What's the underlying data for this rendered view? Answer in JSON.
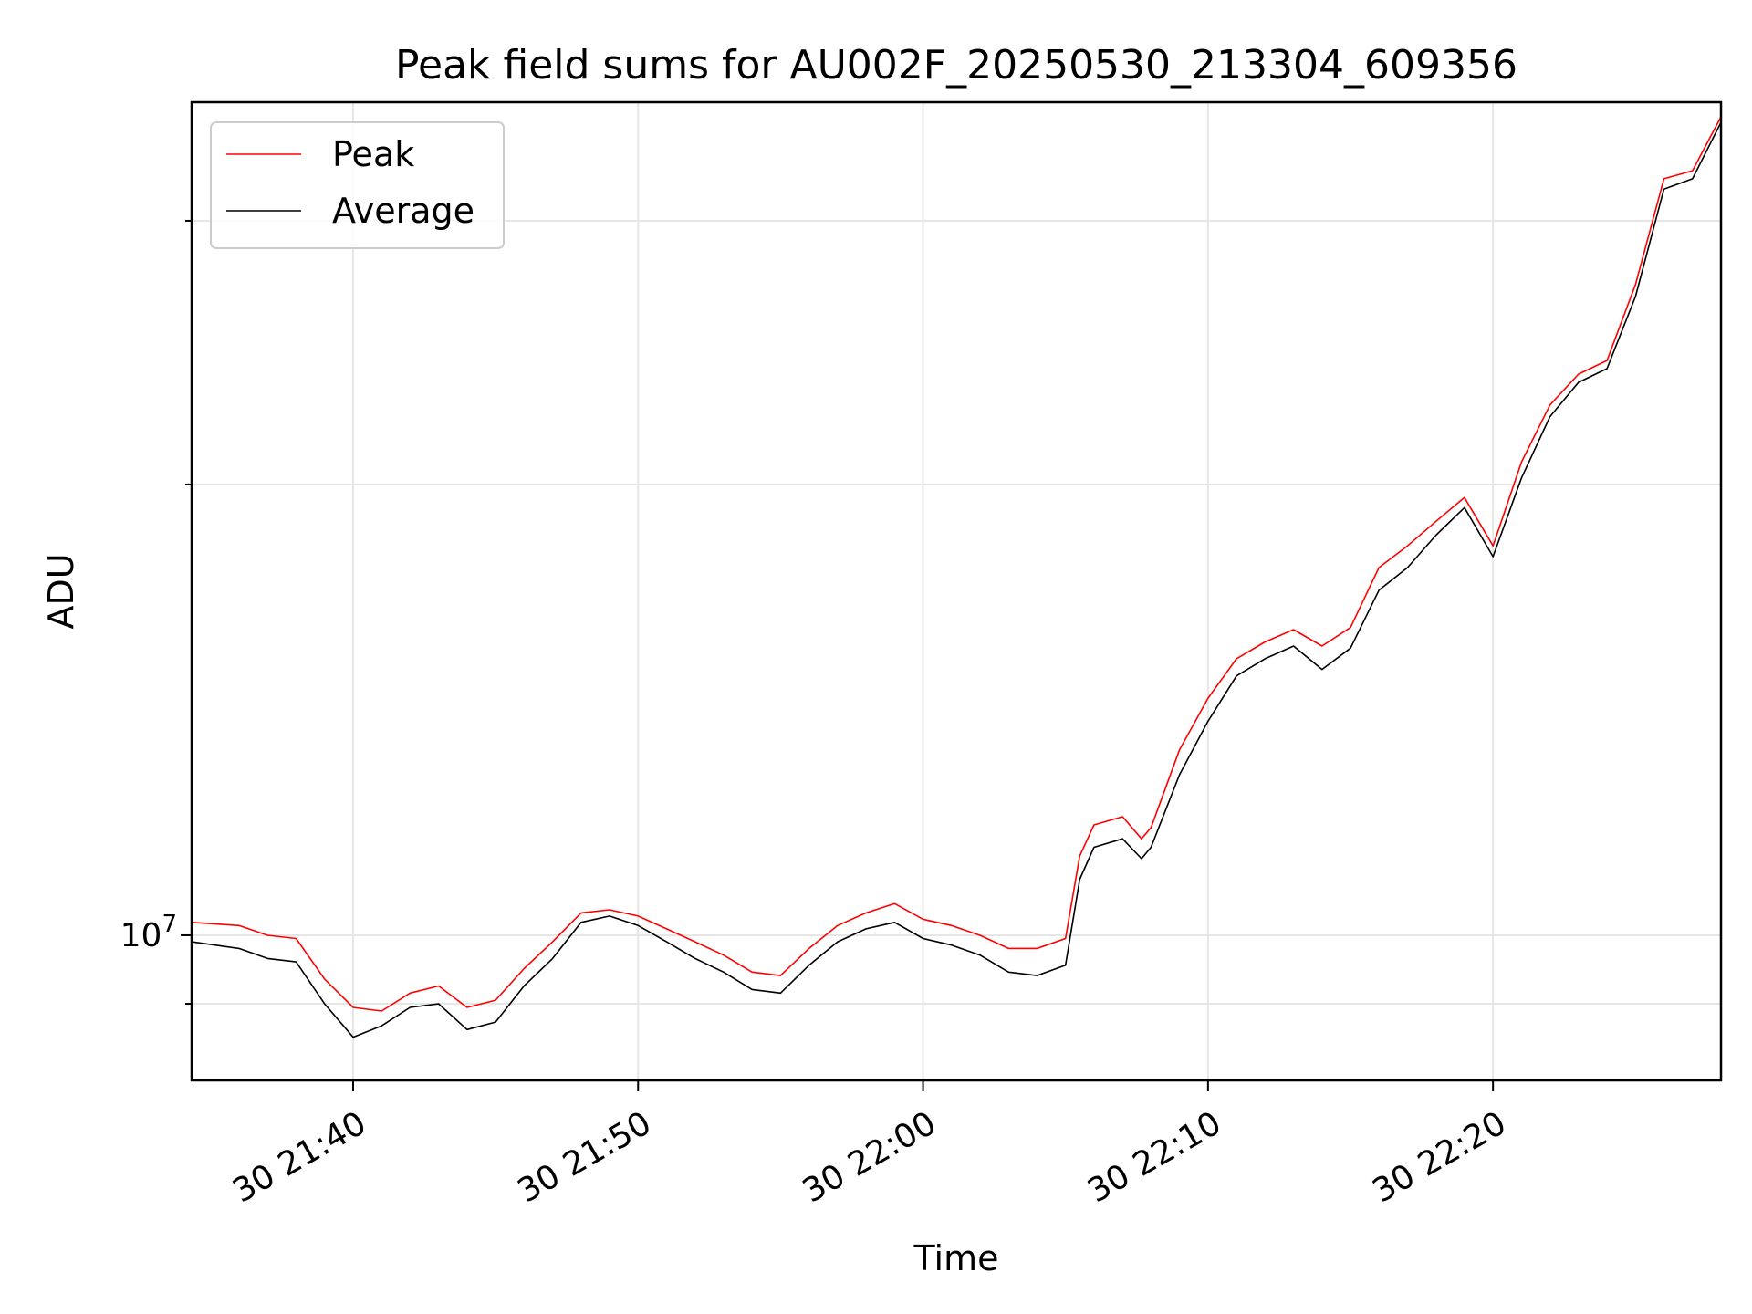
{
  "chart_data": {
    "type": "line",
    "title": "Peak field sums for AU002F_20250530_213304_609356",
    "xlabel": "Time",
    "ylabel": "ADU",
    "y_scale": "log",
    "grid": true,
    "legend_position": "top-left",
    "xlim": [
      "2025-05-30 21:34:20",
      "2025-05-30 22:28:00"
    ],
    "ylim": [
      8000000,
      36000000
    ],
    "x_ticks": [
      {
        "label": "30 21:40",
        "time": "21:40"
      },
      {
        "label": "30 21:50",
        "time": "21:50"
      },
      {
        "label": "30 22:00",
        "time": "22:00"
      },
      {
        "label": "30 22:10",
        "time": "22:10"
      },
      {
        "label": "30 22:20",
        "time": "22:20"
      }
    ],
    "y_ticks": [
      {
        "label": "10",
        "exponent": "7",
        "value": 10000000
      }
    ],
    "x": [
      "21:34:20",
      "21:36:00",
      "21:37:00",
      "21:38:00",
      "21:39:00",
      "21:40:00",
      "21:41:00",
      "21:42:00",
      "21:43:00",
      "21:44:00",
      "21:45:00",
      "21:46:00",
      "21:47:00",
      "21:48:00",
      "21:49:00",
      "21:50:00",
      "21:51:00",
      "21:52:00",
      "21:53:00",
      "21:54:00",
      "21:55:00",
      "21:56:00",
      "21:57:00",
      "21:58:00",
      "21:59:00",
      "22:00:00",
      "22:01:00",
      "22:02:00",
      "22:03:00",
      "22:04:00",
      "22:05:00",
      "22:05:30",
      "22:06:00",
      "22:07:00",
      "22:07:40",
      "22:08:00",
      "22:09:00",
      "22:10:00",
      "22:11:00",
      "22:12:00",
      "22:13:00",
      "22:14:00",
      "22:15:00",
      "22:16:00",
      "22:17:00",
      "22:18:00",
      "22:19:00",
      "22:20:00",
      "22:21:00",
      "22:22:00",
      "22:23:00",
      "22:24:00",
      "22:25:00",
      "22:26:00",
      "22:27:00",
      "22:28:00"
    ],
    "series": [
      {
        "name": "Peak",
        "color": "#ff0000",
        "values": [
          10200000,
          10150000,
          10000000,
          9950000,
          9350000,
          8950000,
          8900000,
          9150000,
          9250000,
          8950000,
          9050000,
          9500000,
          9900000,
          10350000,
          10400000,
          10300000,
          10100000,
          9900000,
          9700000,
          9450000,
          9400000,
          9800000,
          10150000,
          10350000,
          10500000,
          10250000,
          10150000,
          10000000,
          9800000,
          9800000,
          9950000,
          11300000,
          11850000,
          12000000,
          11600000,
          11800000,
          13300000,
          14400000,
          15300000,
          15700000,
          16000000,
          15600000,
          16050000,
          17600000,
          18200000,
          18900000,
          19600000,
          18200000,
          20700000,
          22600000,
          23700000,
          24200000,
          27200000,
          32000000,
          32400000,
          35200000
        ]
      },
      {
        "name": "Average",
        "color": "#000000",
        "values": [
          9900000,
          9800000,
          9650000,
          9600000,
          9000000,
          8550000,
          8700000,
          8950000,
          9000000,
          8650000,
          8750000,
          9250000,
          9650000,
          10200000,
          10300000,
          10150000,
          9900000,
          9650000,
          9450000,
          9200000,
          9150000,
          9550000,
          9900000,
          10100000,
          10200000,
          9950000,
          9850000,
          9700000,
          9450000,
          9400000,
          9550000,
          10900000,
          11450000,
          11600000,
          11250000,
          11450000,
          12800000,
          13900000,
          14900000,
          15300000,
          15600000,
          15050000,
          15550000,
          17000000,
          17600000,
          18500000,
          19300000,
          17900000,
          20200000,
          22200000,
          23400000,
          23900000,
          26700000,
          31500000,
          32000000,
          34900000
        ]
      }
    ]
  }
}
